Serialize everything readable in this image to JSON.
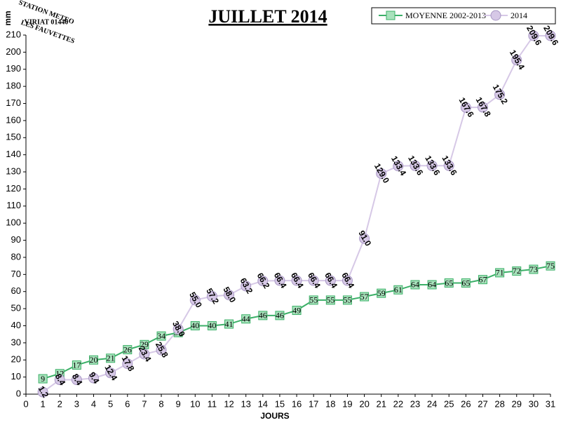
{
  "chart_data": {
    "type": "line",
    "title": "JUILLET 2014",
    "x_label": "JOURS",
    "y_label": "mm",
    "logo": [
      "STATION METEO",
      "VIRIAT 01440",
      "LES FAUVETTES"
    ],
    "x": [
      1,
      2,
      3,
      4,
      5,
      6,
      7,
      8,
      9,
      10,
      11,
      12,
      13,
      14,
      15,
      16,
      17,
      18,
      19,
      20,
      21,
      22,
      23,
      24,
      25,
      26,
      27,
      28,
      29,
      30,
      31
    ],
    "xlim": [
      0,
      31
    ],
    "xticks": [
      0,
      1,
      2,
      3,
      4,
      5,
      6,
      7,
      8,
      9,
      10,
      11,
      12,
      13,
      14,
      15,
      16,
      17,
      18,
      19,
      20,
      21,
      22,
      23,
      24,
      25,
      26,
      27,
      28,
      29,
      30,
      31
    ],
    "ylim": [
      0,
      210
    ],
    "yticks": [
      0,
      10,
      20,
      30,
      40,
      50,
      60,
      70,
      80,
      90,
      100,
      110,
      120,
      130,
      140,
      150,
      160,
      170,
      180,
      190,
      200,
      210
    ],
    "grid": false,
    "legend": "top-right",
    "series": [
      {
        "name": "MOYENNE 2002-2013",
        "color": "#3cb068",
        "fill": "#a8e2bc",
        "marker": "square",
        "values": [
          9,
          12,
          17,
          20,
          21,
          26,
          29,
          34,
          36,
          40,
          40,
          41,
          44,
          46,
          46,
          49,
          55,
          55,
          55,
          57,
          59,
          61,
          64,
          64,
          65,
          65,
          67,
          71,
          72,
          73,
          75
        ]
      },
      {
        "name": "2014",
        "color": "#d6c8e6",
        "fill": "#d6c8e6",
        "marker": "circle",
        "values": [
          1.2,
          8.4,
          8.4,
          9.4,
          12.4,
          17.8,
          23.4,
          25.8,
          38.0,
          55.0,
          57.2,
          58.0,
          63.2,
          66.2,
          66.4,
          66.4,
          66.4,
          66.4,
          66.4,
          91.0,
          129.0,
          133.4,
          133.6,
          133.6,
          133.6,
          167.6,
          167.8,
          175.2,
          195.4,
          209.6,
          209.6
        ],
        "value_labels": [
          "1.2",
          "8.4",
          "8.4",
          "9.4",
          "12.4",
          "17.8",
          "23.4",
          "25.8",
          "38.0",
          "55.0",
          "57.2",
          "58.0",
          "63.2",
          "66.2",
          "66.4",
          "66.4",
          "66.4",
          "66.4",
          "66.4",
          "91.0",
          "129.0",
          "133.4",
          "133.6",
          "133.6",
          "133.6",
          "167.6",
          "167.8",
          "175.2",
          "195.4",
          "209.6",
          "209.6"
        ]
      }
    ]
  }
}
